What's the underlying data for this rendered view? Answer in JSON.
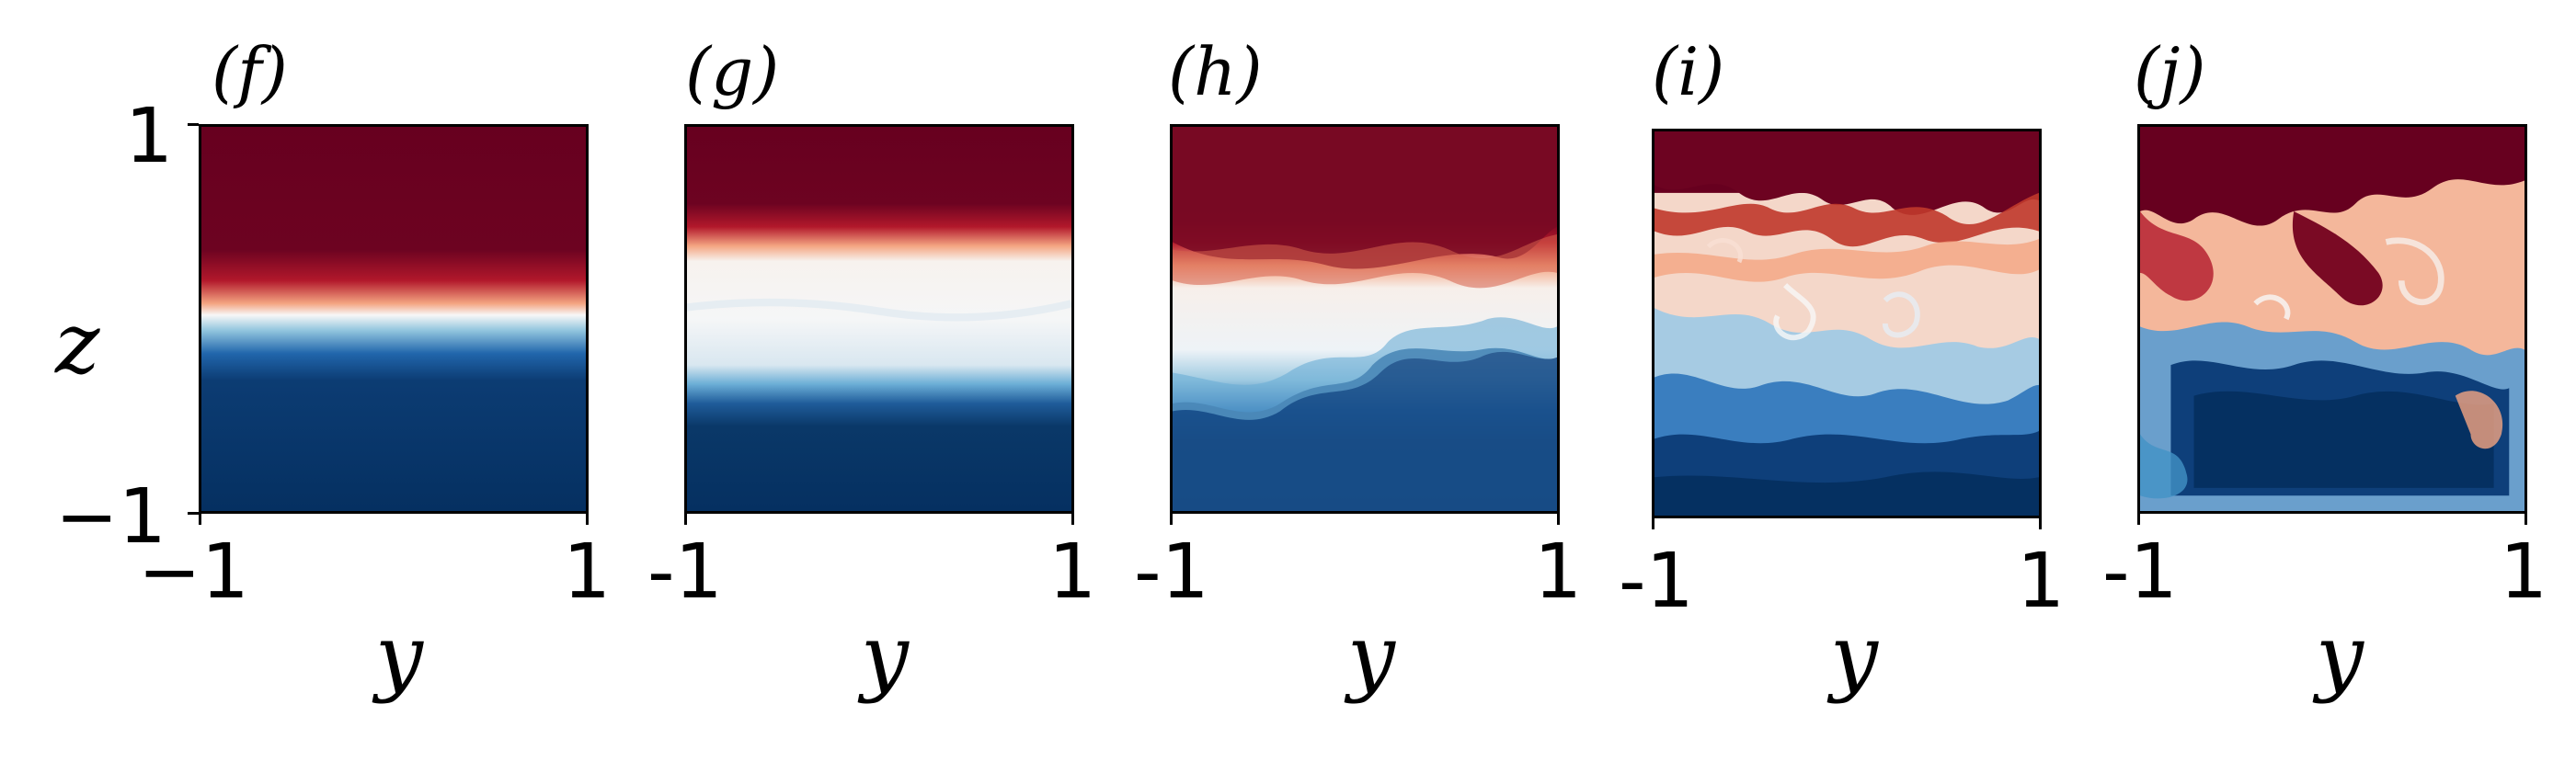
{
  "figure": {
    "colors": {
      "red": "#67001f",
      "white": "#f7f7f7",
      "blue": "#053061"
    },
    "panels": [
      {
        "label": "(f)",
        "x_tick_min": "−1",
        "x_tick_max": "1",
        "xlabel": "y"
      },
      {
        "label": "(g)",
        "x_tick_min": "-1",
        "x_tick_max": "1",
        "xlabel": "y"
      },
      {
        "label": "(h)",
        "x_tick_min": "-1",
        "x_tick_max": "1",
        "xlabel": "y"
      },
      {
        "label": "(i)",
        "x_tick_min": "-1",
        "x_tick_max": "1",
        "xlabel": "y"
      },
      {
        "label": "(j)",
        "x_tick_min": "-1",
        "x_tick_max": "1",
        "xlabel": "y"
      }
    ],
    "y_axis": {
      "tick_max": "1",
      "tick_min": "−1",
      "label": "z"
    }
  }
}
